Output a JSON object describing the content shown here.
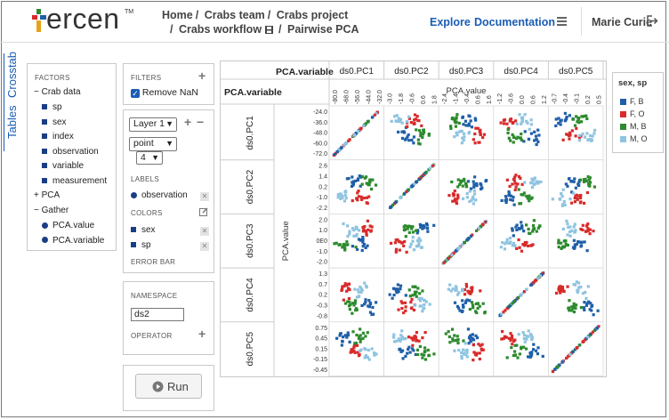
{
  "header": {
    "brand": "ercen",
    "trademark": "TM",
    "breadcrumbs_row1": [
      "Home",
      "Crabs team",
      "Crabs project"
    ],
    "breadcrumbs_row2": [
      "Crabs workflow",
      "Pairwise PCA"
    ],
    "nav": {
      "explore": "Explore",
      "documentation": "Documentation"
    },
    "user": "Marie Curie"
  },
  "side_tabs": {
    "crosstab": "Crosstab",
    "tables": "Tables"
  },
  "factors": {
    "title": "FACTORS",
    "groups": [
      {
        "name": "Crab data",
        "expanded": true,
        "items": [
          "sp",
          "sex",
          "index",
          "observation",
          "variable",
          "measurement"
        ]
      },
      {
        "name": "PCA",
        "expanded": false,
        "items": []
      },
      {
        "name": "Gather",
        "expanded": true,
        "items": [
          "PCA.value",
          "PCA.variable"
        ]
      }
    ]
  },
  "filters": {
    "title": "FILTERS",
    "remove_nan_label": "Remove NaN",
    "remove_nan_checked": true
  },
  "layer": {
    "layer_select": "Layer 1",
    "geom_select": "point",
    "size_select": "4",
    "labels_title": "LABELS",
    "labels": [
      "observation"
    ],
    "colors_title": "COLORS",
    "colors": [
      "sex",
      "sp"
    ],
    "errorbar_title": "ERROR BAR"
  },
  "namespace": {
    "title": "NAMESPACE",
    "value": "ds2",
    "operator_title": "OPERATOR"
  },
  "run_label": "Run",
  "chart_data": {
    "type": "scatter",
    "title": "",
    "col_factor_label": "PCA.variable",
    "row_factor_label": "PCA.variable",
    "xlabel": "PCA.value",
    "ylabel": "PCA.value",
    "variables": [
      "ds0.PC1",
      "ds0.PC2",
      "ds0.PC3",
      "ds0.PC4",
      "ds0.PC5"
    ],
    "x_ticks": [
      [
        "-80.0",
        "-68.0",
        "-56.0",
        "-44.0",
        "-32.0"
      ],
      [
        "-3.0",
        "-1.8",
        "-0.6",
        "0.6",
        "1.8"
      ],
      [
        "-2.4",
        "-1.4",
        "-0.4",
        "0.6",
        "1.6"
      ],
      [
        "-1.2",
        "-0.6",
        "0.0",
        "0.6",
        "1.2"
      ],
      [
        "-0.7",
        "-0.4",
        "-0.1",
        "0.2",
        "0.5"
      ]
    ],
    "y_ticks": [
      [
        "-24.0",
        "-36.0",
        "-48.0",
        "-60.0",
        "-72.0"
      ],
      [
        "2.6",
        "1.4",
        "0.2",
        "-1.0",
        "-2.2"
      ],
      [
        "2.0",
        "1.0",
        "0E0",
        "-1.0",
        "-2.0"
      ],
      [
        "1.3",
        "0.7",
        "0.2",
        "-0.3",
        "-0.8"
      ],
      [
        "0.75",
        "0.45",
        "0.15",
        "-0.15",
        "-0.45"
      ]
    ],
    "legend": {
      "title": "sex, sp",
      "entries": [
        {
          "label": "F, B",
          "color": "#1f5fa8"
        },
        {
          "label": "F, O",
          "color": "#d92a2a"
        },
        {
          "label": "M, B",
          "color": "#2d8a2d"
        },
        {
          "label": "M, O",
          "color": "#8fc4e0"
        }
      ]
    }
  }
}
